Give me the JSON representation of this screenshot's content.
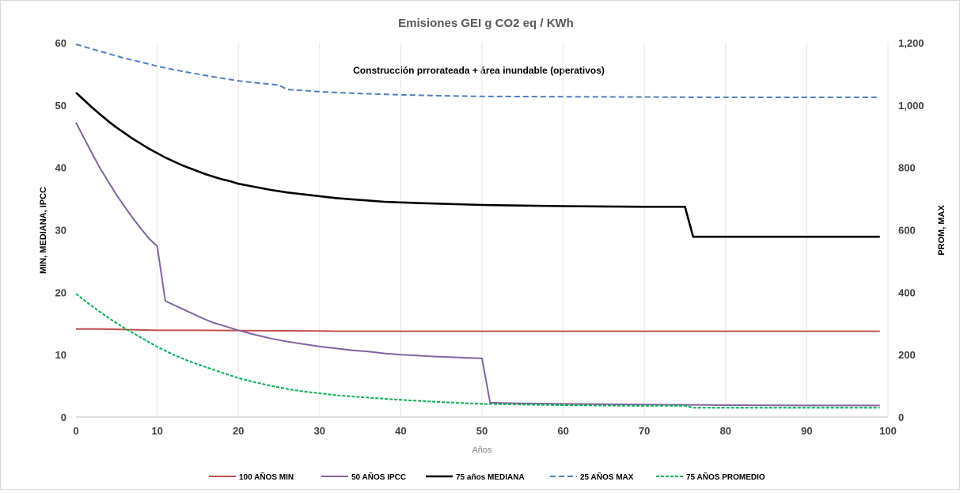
{
  "chart_data": {
    "type": "line",
    "title": "Emisiones GEI g CO2 eq / KWh",
    "annotation": "Construcción prrorateada + área inundable (operativos)",
    "xlabel": "Años",
    "ylabel_left": "MIN, MEDIANA, IPCC",
    "ylabel_right": "PROM, MAX",
    "xlim": [
      0,
      100
    ],
    "ylim_left": [
      0,
      60
    ],
    "ylim_right": [
      0,
      1200
    ],
    "x_ticks": [
      0,
      10,
      20,
      30,
      40,
      50,
      60,
      70,
      80,
      90,
      100
    ],
    "y_ticks_left": [
      0,
      10,
      20,
      30,
      40,
      50,
      60
    ],
    "y_ticks_right": [
      "0",
      "200",
      "400",
      "600",
      "800",
      "1,000",
      "1,200"
    ],
    "y_ticks_right_values": [
      0,
      200,
      400,
      600,
      800,
      1000,
      1200
    ],
    "grid": "vertical",
    "legend_position": "bottom",
    "series": [
      {
        "name": "100 AÑOS MIN",
        "axis": "left",
        "color": "#c0504d",
        "dash": "solid",
        "points": [
          [
            0,
            14.1
          ],
          [
            3,
            14.1
          ],
          [
            10,
            13.9
          ],
          [
            15,
            13.9
          ],
          [
            20,
            13.85
          ],
          [
            30,
            13.8
          ],
          [
            32,
            13.75
          ],
          [
            99,
            13.75
          ]
        ]
      },
      {
        "name": "50 AÑOS IPCC",
        "axis": "left",
        "color": "#8064a2",
        "dash": "solid",
        "points": [
          [
            0,
            47.2
          ],
          [
            1,
            44.7
          ],
          [
            2,
            42.2
          ],
          [
            3,
            39.8
          ],
          [
            4,
            37.7
          ],
          [
            5,
            35.6
          ],
          [
            6,
            33.7
          ],
          [
            7,
            31.9
          ],
          [
            8,
            30.2
          ],
          [
            9,
            28.6
          ],
          [
            10,
            27.4
          ],
          [
            11,
            18.6
          ],
          [
            12,
            18.0
          ],
          [
            13,
            17.4
          ],
          [
            14,
            16.8
          ],
          [
            15,
            16.2
          ],
          [
            16,
            15.6
          ],
          [
            17,
            15.1
          ],
          [
            18,
            14.7
          ],
          [
            19,
            14.3
          ],
          [
            20,
            13.9
          ],
          [
            22,
            13.2
          ],
          [
            24,
            12.6
          ],
          [
            26,
            12.1
          ],
          [
            28,
            11.7
          ],
          [
            30,
            11.3
          ],
          [
            32,
            11.0
          ],
          [
            34,
            10.7
          ],
          [
            36,
            10.5
          ],
          [
            38,
            10.2
          ],
          [
            40,
            10.0
          ],
          [
            42,
            9.85
          ],
          [
            44,
            9.7
          ],
          [
            46,
            9.6
          ],
          [
            48,
            9.5
          ],
          [
            50,
            9.4
          ],
          [
            51,
            2.3
          ],
          [
            55,
            2.2
          ],
          [
            60,
            2.1
          ],
          [
            65,
            2.05
          ],
          [
            70,
            2.0
          ],
          [
            75,
            1.95
          ],
          [
            80,
            1.9
          ],
          [
            90,
            1.85
          ],
          [
            99,
            1.85
          ]
        ]
      },
      {
        "name": "75 años MEDIANA",
        "axis": "left",
        "color": "#000000",
        "dash": "solid",
        "points": [
          [
            0,
            52.0
          ],
          [
            1,
            50.8
          ],
          [
            2,
            49.6
          ],
          [
            3,
            48.5
          ],
          [
            4,
            47.4
          ],
          [
            5,
            46.4
          ],
          [
            6,
            45.5
          ],
          [
            7,
            44.6
          ],
          [
            8,
            43.8
          ],
          [
            9,
            43.0
          ],
          [
            10,
            42.3
          ],
          [
            11,
            41.6
          ],
          [
            12,
            41.0
          ],
          [
            13,
            40.4
          ],
          [
            14,
            39.9
          ],
          [
            15,
            39.4
          ],
          [
            16,
            38.9
          ],
          [
            17,
            38.5
          ],
          [
            18,
            38.1
          ],
          [
            19,
            37.8
          ],
          [
            20,
            37.4
          ],
          [
            22,
            36.9
          ],
          [
            24,
            36.4
          ],
          [
            26,
            36.0
          ],
          [
            28,
            35.7
          ],
          [
            30,
            35.4
          ],
          [
            32,
            35.1
          ],
          [
            34,
            34.9
          ],
          [
            36,
            34.7
          ],
          [
            38,
            34.5
          ],
          [
            40,
            34.4
          ],
          [
            42,
            34.3
          ],
          [
            45,
            34.2
          ],
          [
            50,
            34.0
          ],
          [
            55,
            33.9
          ],
          [
            60,
            33.8
          ],
          [
            65,
            33.75
          ],
          [
            70,
            33.7
          ],
          [
            75,
            33.7
          ],
          [
            76,
            28.9
          ],
          [
            99,
            28.9
          ]
        ]
      },
      {
        "name": "25 AÑOS MAX",
        "axis": "right",
        "color": "#4f81bd",
        "dash": "dashed",
        "points": [
          [
            0,
            1195
          ],
          [
            2,
            1180
          ],
          [
            4,
            1165
          ],
          [
            6,
            1150
          ],
          [
            8,
            1138
          ],
          [
            10,
            1125
          ],
          [
            12,
            1114
          ],
          [
            14,
            1104
          ],
          [
            16,
            1095
          ],
          [
            18,
            1086
          ],
          [
            20,
            1078
          ],
          [
            22,
            1072
          ],
          [
            24,
            1067
          ],
          [
            25,
            1064
          ],
          [
            26,
            1050
          ],
          [
            28,
            1047
          ],
          [
            30,
            1043
          ],
          [
            35,
            1037
          ],
          [
            40,
            1033
          ],
          [
            45,
            1030
          ],
          [
            50,
            1028
          ],
          [
            60,
            1027
          ],
          [
            70,
            1026
          ],
          [
            80,
            1025
          ],
          [
            90,
            1025
          ],
          [
            99,
            1025
          ]
        ]
      },
      {
        "name": "75 AÑOS PROMEDIO",
        "axis": "right",
        "color": "#00b050",
        "dash": "dotted",
        "points": [
          [
            0,
            395
          ],
          [
            2,
            355
          ],
          [
            4,
            318
          ],
          [
            6,
            285
          ],
          [
            8,
            255
          ],
          [
            10,
            225
          ],
          [
            12,
            200
          ],
          [
            14,
            178
          ],
          [
            16,
            160
          ],
          [
            18,
            142
          ],
          [
            20,
            125
          ],
          [
            22,
            112
          ],
          [
            24,
            100
          ],
          [
            26,
            90
          ],
          [
            28,
            82
          ],
          [
            30,
            76
          ],
          [
            32,
            70
          ],
          [
            35,
            64
          ],
          [
            40,
            55
          ],
          [
            45,
            48
          ],
          [
            50,
            42
          ],
          [
            55,
            40
          ],
          [
            60,
            38
          ],
          [
            65,
            37
          ],
          [
            70,
            36
          ],
          [
            75,
            36
          ],
          [
            76,
            30
          ],
          [
            99,
            30
          ]
        ]
      }
    ]
  }
}
